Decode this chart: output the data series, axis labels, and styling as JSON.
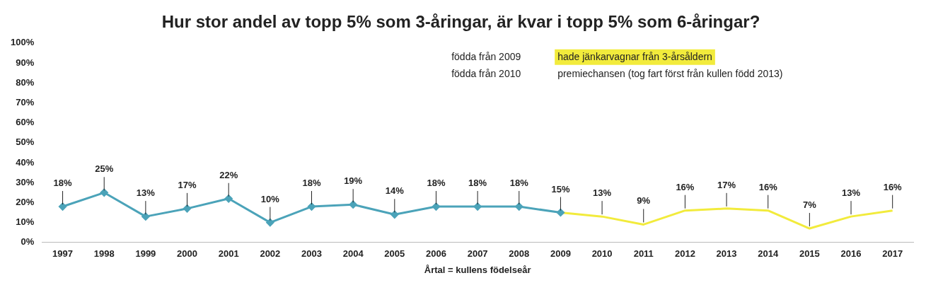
{
  "chart_data": {
    "type": "line",
    "title": "Hur stor andel av topp 5% som 3-åringar, är kvar i topp 5% som 6-åringar?",
    "xlabel": "Årtal = kullens födelseår",
    "categories": [
      "1997",
      "1998",
      "1999",
      "2000",
      "2001",
      "2002",
      "2003",
      "2004",
      "2005",
      "2006",
      "2007",
      "2008",
      "2009",
      "2010",
      "2011",
      "2012",
      "2013",
      "2014",
      "2015",
      "2016",
      "2017"
    ],
    "series": [
      {
        "color": "#4ba3b9",
        "marker": "diamond",
        "values": [
          18,
          25,
          13,
          17,
          22,
          10,
          18,
          19,
          14,
          18,
          18,
          18,
          15,
          null,
          null,
          null,
          null,
          null,
          null,
          null,
          null
        ],
        "value_labels": [
          "18%",
          "25%",
          "13%",
          "17%",
          "22%",
          "10%",
          "18%",
          "19%",
          "14%",
          "18%",
          "18%",
          "18%",
          "15%",
          null,
          null,
          null,
          null,
          null,
          null,
          null,
          null
        ]
      },
      {
        "color": "#f2eb3c",
        "marker": "none",
        "values": [
          null,
          null,
          null,
          null,
          null,
          null,
          null,
          null,
          null,
          null,
          null,
          null,
          15,
          13,
          9,
          16,
          17,
          16,
          7,
          13,
          16
        ],
        "value_labels": [
          null,
          null,
          null,
          null,
          null,
          null,
          null,
          null,
          null,
          null,
          null,
          null,
          null,
          "13%",
          "9%",
          "16%",
          "17%",
          "16%",
          "7%",
          "13%",
          "16%"
        ]
      }
    ],
    "ylim": [
      0,
      100
    ],
    "yticks": [
      {
        "value": 0,
        "label": "0%"
      },
      {
        "value": 10,
        "label": "10%"
      },
      {
        "value": 20,
        "label": "20%"
      },
      {
        "value": 30,
        "label": "30%"
      },
      {
        "value": 40,
        "label": "40%"
      },
      {
        "value": 50,
        "label": "50%"
      },
      {
        "value": 60,
        "label": "60%"
      },
      {
        "value": 70,
        "label": "70%"
      },
      {
        "value": 80,
        "label": "80%"
      },
      {
        "value": 90,
        "label": "90%"
      },
      {
        "value": 100,
        "label": "100%"
      }
    ],
    "grid": false,
    "legend": false,
    "annotations": [
      "födda från 2009",
      "hade jänkarvagnar från 3-årsåldern",
      "födda från 2010",
      "premiechansen (tog fart först från kullen född 2013)"
    ]
  }
}
